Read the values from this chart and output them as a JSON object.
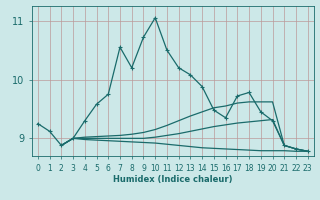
{
  "xlabel": "Humidex (Indice chaleur)",
  "ylabel": "",
  "background_color": "#cce8e8",
  "grid_color": "#aacccc",
  "line_color": "#1a6b6b",
  "xlim": [
    -0.5,
    23.5
  ],
  "ylim": [
    8.7,
    11.25
  ],
  "yticks": [
    9,
    10,
    11
  ],
  "xticks": [
    0,
    1,
    2,
    3,
    4,
    5,
    6,
    7,
    8,
    9,
    10,
    11,
    12,
    13,
    14,
    15,
    16,
    17,
    18,
    19,
    20,
    21,
    22,
    23
  ],
  "line1_x": [
    0,
    1,
    2,
    3,
    4,
    5,
    6,
    7,
    8,
    9,
    10,
    11,
    12,
    13,
    14,
    15,
    16,
    17,
    18,
    19,
    20,
    21,
    22,
    23
  ],
  "line1_y": [
    9.25,
    9.12,
    8.88,
    9.0,
    9.3,
    9.58,
    9.75,
    10.55,
    10.2,
    10.72,
    11.05,
    10.5,
    10.2,
    10.08,
    9.88,
    9.48,
    9.35,
    9.72,
    9.78,
    9.45,
    9.3,
    8.88,
    8.82,
    8.78
  ],
  "line2_x": [
    2,
    3,
    4,
    5,
    6,
    7,
    8,
    9,
    10,
    11,
    12,
    13,
    14,
    15,
    16,
    17,
    18,
    19,
    20,
    21,
    22,
    23
  ],
  "line2_y": [
    8.88,
    9.0,
    9.02,
    9.03,
    9.04,
    9.05,
    9.07,
    9.1,
    9.15,
    9.22,
    9.3,
    9.38,
    9.45,
    9.52,
    9.55,
    9.6,
    9.62,
    9.62,
    9.62,
    8.88,
    8.82,
    8.78
  ],
  "line3_x": [
    2,
    3,
    4,
    5,
    6,
    7,
    8,
    9,
    10,
    11,
    12,
    13,
    14,
    15,
    16,
    17,
    18,
    19,
    20,
    21,
    22,
    23
  ],
  "line3_y": [
    8.88,
    9.0,
    9.0,
    9.0,
    9.0,
    9.0,
    9.0,
    9.0,
    9.02,
    9.05,
    9.08,
    9.12,
    9.16,
    9.2,
    9.23,
    9.26,
    9.28,
    9.3,
    9.32,
    8.88,
    8.82,
    8.78
  ],
  "line4_x": [
    2,
    3,
    4,
    5,
    6,
    7,
    8,
    9,
    10,
    11,
    12,
    13,
    14,
    15,
    16,
    17,
    18,
    19,
    20,
    21,
    22,
    23
  ],
  "line4_y": [
    8.88,
    9.0,
    8.98,
    8.97,
    8.96,
    8.95,
    8.94,
    8.93,
    8.92,
    8.9,
    8.88,
    8.86,
    8.84,
    8.83,
    8.82,
    8.81,
    8.8,
    8.79,
    8.79,
    8.79,
    8.78,
    8.78
  ]
}
